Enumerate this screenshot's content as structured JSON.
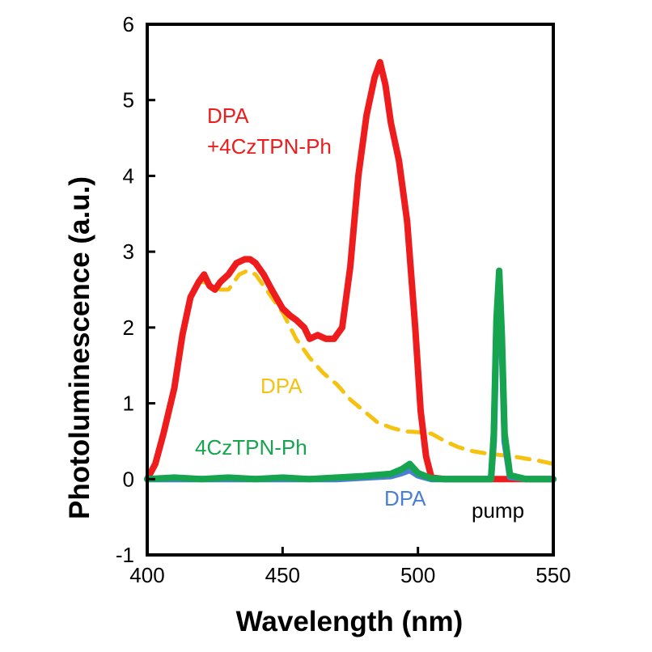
{
  "chart_data": {
    "type": "line",
    "xlabel": "Wavelength (nm)",
    "ylabel": "Photoluminescence (a.u.)",
    "xlim": [
      400,
      550
    ],
    "ylim": [
      -1,
      6
    ],
    "xticks": [
      400,
      450,
      500,
      550
    ],
    "yticks": [
      -1,
      0,
      1,
      2,
      3,
      4,
      5,
      6
    ],
    "grid": false,
    "series": [
      {
        "name": "DPA",
        "color": "#f5c211",
        "style": "dashed",
        "x": [
          400,
          403,
          406,
          410,
          413,
          416,
          419,
          421,
          424,
          427,
          430,
          432,
          434,
          437,
          440,
          443,
          446,
          450,
          455,
          460,
          465,
          470,
          475,
          480,
          485,
          490,
          495,
          500,
          505,
          510,
          515,
          520,
          525,
          530,
          535,
          540,
          545,
          550
        ],
        "y": [
          0.0,
          0.2,
          0.6,
          1.2,
          1.9,
          2.4,
          2.6,
          2.6,
          2.55,
          2.5,
          2.5,
          2.6,
          2.7,
          2.75,
          2.7,
          2.55,
          2.4,
          2.2,
          1.85,
          1.6,
          1.4,
          1.25,
          1.05,
          0.9,
          0.75,
          0.68,
          0.63,
          0.62,
          0.6,
          0.5,
          0.42,
          0.37,
          0.34,
          0.32,
          0.3,
          0.27,
          0.24,
          0.2
        ]
      },
      {
        "name": "DPA +4CzTPN-Ph",
        "color": "#ee1c1c",
        "style": "solid",
        "x": [
          400,
          403,
          406,
          410,
          413,
          416,
          419,
          421,
          423,
          425,
          427,
          430,
          433,
          436,
          438,
          440,
          443,
          446,
          450,
          453,
          455,
          458,
          460,
          463,
          466,
          469,
          472,
          475,
          478,
          481,
          484,
          486,
          488,
          490,
          493,
          496,
          499,
          501,
          503,
          505,
          510,
          515,
          520,
          525,
          530,
          535,
          540,
          545,
          550
        ],
        "y": [
          0.0,
          0.2,
          0.6,
          1.2,
          1.9,
          2.4,
          2.6,
          2.7,
          2.55,
          2.5,
          2.6,
          2.7,
          2.85,
          2.9,
          2.9,
          2.85,
          2.7,
          2.5,
          2.25,
          2.15,
          2.1,
          2.0,
          1.85,
          1.9,
          1.85,
          1.85,
          2.0,
          2.8,
          4.0,
          4.8,
          5.3,
          5.5,
          5.2,
          4.7,
          4.2,
          3.4,
          2.0,
          0.9,
          0.3,
          0.02,
          0.0,
          0.0,
          0.0,
          0.0,
          0.0,
          0.0,
          0.0,
          0.0,
          0.0
        ]
      },
      {
        "name": "DPA",
        "color": "#4a7fd4",
        "style": "solid",
        "x": [
          400,
          410,
          420,
          430,
          440,
          450,
          460,
          470,
          480,
          490,
          494,
          497,
          500,
          505,
          510,
          515,
          520,
          525,
          527,
          528,
          529,
          530,
          531,
          532,
          534,
          540,
          545,
          550
        ],
        "y": [
          0.0,
          0.0,
          0.0,
          0.0,
          0.0,
          0.0,
          0.0,
          0.0,
          0.02,
          0.04,
          0.08,
          0.12,
          0.05,
          0.0,
          0.0,
          0.0,
          0.0,
          0.0,
          0.0,
          0.5,
          2.0,
          2.7,
          1.8,
          0.5,
          0.03,
          0.0,
          0.0,
          0.0
        ]
      },
      {
        "name": "4CzTPN-Ph",
        "color": "#16a54e",
        "style": "solid",
        "x": [
          400,
          410,
          420,
          430,
          440,
          450,
          460,
          470,
          480,
          490,
          494,
          497,
          500,
          505,
          510,
          515,
          520,
          525,
          527,
          528,
          529,
          530,
          531,
          532,
          534,
          540,
          545,
          550
        ],
        "y": [
          0.0,
          0.02,
          0.0,
          0.02,
          0.0,
          0.02,
          0.0,
          0.02,
          0.04,
          0.07,
          0.13,
          0.2,
          0.08,
          0.01,
          0.0,
          0.0,
          0.0,
          0.0,
          0.0,
          0.6,
          2.1,
          2.75,
          1.9,
          0.6,
          0.05,
          0.0,
          0.0,
          0.0
        ]
      }
    ],
    "annotations": [
      {
        "line1": "DPA",
        "line2": "+4CzTPN-Ph",
        "color": "#ee1c1c"
      },
      {
        "text": "DPA",
        "color": "#f5c211"
      },
      {
        "text": "4CzTPN-Ph",
        "color": "#16a54e"
      },
      {
        "text": "DPA",
        "color": "#4a7fd4"
      },
      {
        "text": "pump",
        "color": "#000000"
      }
    ]
  }
}
